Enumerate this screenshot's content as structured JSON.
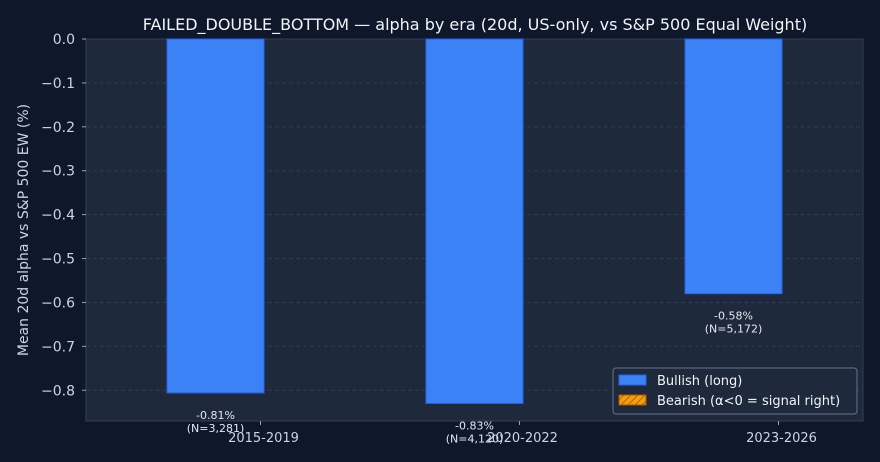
{
  "chart_data": {
    "type": "bar",
    "title": "FAILED_DOUBLE_BOTTOM — alpha by era (20d, US-only, vs S&P 500 Equal Weight)",
    "xlabel": "",
    "ylabel": "Mean 20d alpha vs S&P 500 EW (%)",
    "ylim": [
      -0.87,
      0.0
    ],
    "yticks": [
      "0.0",
      "−0.1",
      "−0.2",
      "−0.3",
      "−0.4",
      "−0.5",
      "−0.6",
      "−0.7",
      "−0.8"
    ],
    "ytick_values": [
      0.0,
      -0.1,
      -0.2,
      -0.3,
      -0.4,
      -0.5,
      -0.6,
      -0.7,
      -0.8
    ],
    "categories": [
      "2015-2019",
      "2020-2022",
      "2023-2026"
    ],
    "series": [
      {
        "name": "Bullish (long)",
        "color": "#3b82f6",
        "values": [
          -0.806,
          -0.83,
          -0.58
        ],
        "labels": [
          "-0.81%",
          "-0.83%",
          "-0.58%"
        ],
        "counts": [
          "(N=3,281)",
          "(N=4,120)",
          "(N=5,172)"
        ]
      }
    ],
    "legend": {
      "position": "bottom-right",
      "entries": [
        {
          "label": "Bullish (long)",
          "color": "#3b82f6",
          "hatch": false
        },
        {
          "label": "Bearish (α<0 = signal right)",
          "color": "#f59e0b",
          "hatch": true
        }
      ]
    },
    "grid": true
  }
}
